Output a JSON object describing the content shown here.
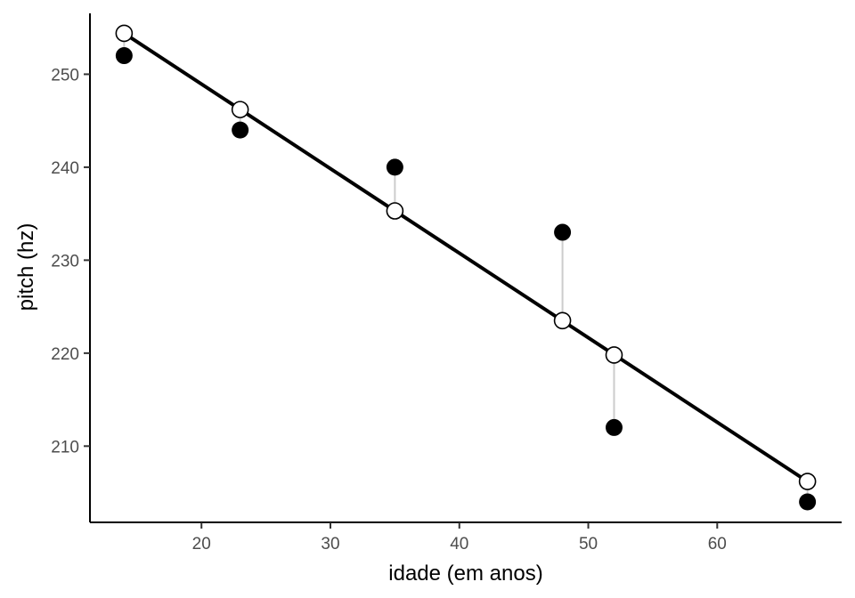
{
  "chart_data": {
    "type": "scatter",
    "title": "",
    "xlabel": "idade (em anos)",
    "ylabel": "pitch (hz)",
    "xlim": [
      11.35,
      69.65
    ],
    "ylim": [
      201.8,
      256.55
    ],
    "x_ticks": [
      20,
      30,
      40,
      50,
      60
    ],
    "y_ticks": [
      210,
      220,
      230,
      240,
      250
    ],
    "grid": false,
    "legend": "none",
    "series": [
      {
        "kind": "observed",
        "marker": "filled-circle",
        "x": [
          14,
          23,
          35,
          48,
          52,
          67
        ],
        "y": [
          252,
          244,
          240,
          233,
          212,
          204
        ]
      },
      {
        "kind": "fitted",
        "marker": "open-circle",
        "x": [
          14,
          23,
          35,
          48,
          52,
          67
        ],
        "y": [
          254.4,
          246.2,
          235.3,
          223.5,
          219.8,
          206.2
        ]
      }
    ],
    "regression_line": {
      "x": [
        14,
        67
      ],
      "y": [
        254.4,
        206.2
      ]
    },
    "residual_segments": true,
    "colors": {
      "points": "#000000",
      "line": "#000000",
      "residual": "#cccccc",
      "axis": "#000000",
      "tick_text": "#4d4d4d"
    }
  }
}
